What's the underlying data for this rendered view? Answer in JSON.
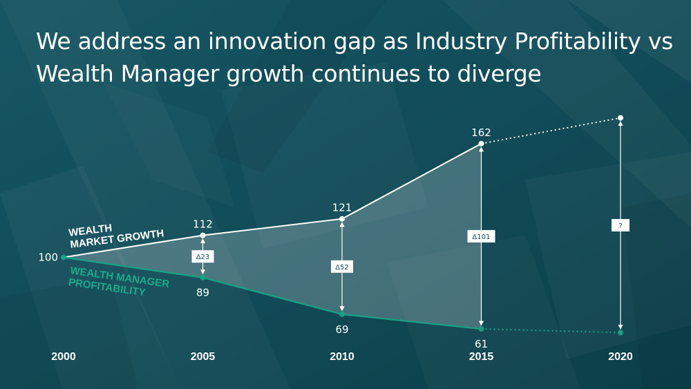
{
  "title": "We address an innovation gap as Industry Profitability vs Wealth Manager growth continues to diverge",
  "colors": {
    "background": "#0f4a55",
    "growth_line": "#ffffff",
    "profitability_line": "#1b9e84",
    "profitability_label": "#1ea98c",
    "gap_fill": "#ffffff"
  },
  "chart_data": {
    "type": "line",
    "categories": [
      "2000",
      "2005",
      "2010",
      "2015",
      "2020"
    ],
    "x": [
      2000,
      2005,
      2010,
      2015,
      2020
    ],
    "series": [
      {
        "name": "WEALTH MARKET GROWTH",
        "label_lines": [
          "WEALTH",
          "MARKET GROWTH"
        ],
        "values": [
          100,
          112,
          121,
          162,
          null
        ],
        "value_labels": [
          "100",
          "112",
          "121",
          "162",
          ""
        ],
        "projected_value": 176
      },
      {
        "name": "WEALTH MANAGER PROFITABILITY",
        "label_lines": [
          "WEALTH MANAGER",
          "PROFITABILITY"
        ],
        "values": [
          100,
          89,
          69,
          61,
          null
        ],
        "value_labels": [
          "",
          "89",
          "69",
          "61",
          ""
        ],
        "projected_value": 59
      }
    ],
    "gaps": [
      {
        "x": 2005,
        "label": "Δ23"
      },
      {
        "x": 2010,
        "label": "Δ52"
      },
      {
        "x": 2015,
        "label": "Δ101"
      },
      {
        "x": 2020,
        "label": "?"
      }
    ],
    "xlabel": "",
    "ylabel": "",
    "ylim": [
      55,
      180
    ],
    "grid": false
  }
}
